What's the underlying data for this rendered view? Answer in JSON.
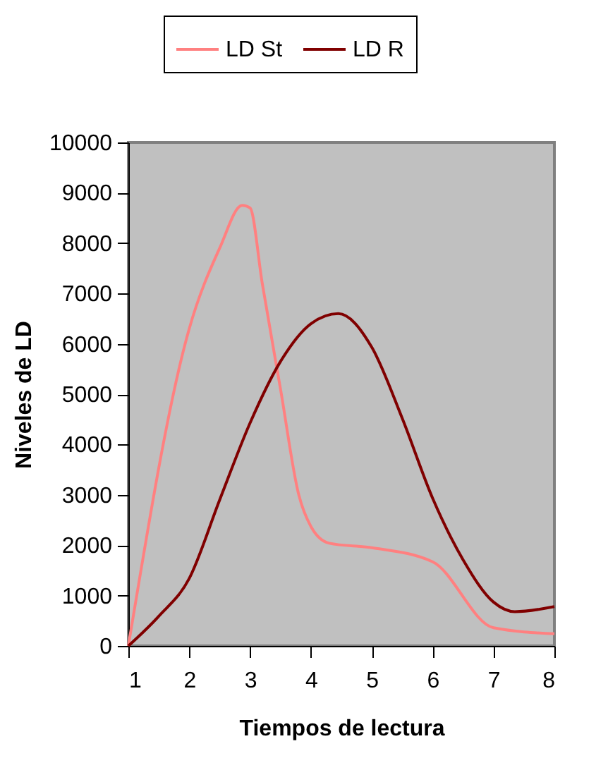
{
  "chart_data": {
    "type": "line",
    "xlabel": "Tiempos de lectura",
    "ylabel": "Niveles de LD",
    "xlim": [
      1,
      8
    ],
    "xticks": [
      1,
      2,
      3,
      4,
      5,
      6,
      7,
      8
    ],
    "ylim": [
      0,
      10000
    ],
    "yticks": [
      0,
      1000,
      2000,
      3000,
      4000,
      5000,
      6000,
      7000,
      8000,
      9000,
      10000
    ],
    "grid": false,
    "legend": "top",
    "line_style": "solid",
    "marker": "none",
    "series": [
      {
        "name": "LD St",
        "color": "#ff8080",
        "x": [
          1,
          2,
          2.5,
          2.87,
          3,
          3.2,
          3.5,
          3.8,
          4,
          4.3,
          5,
          6,
          7,
          8
        ],
        "values": [
          0,
          6300,
          7900,
          8750,
          8700,
          7200,
          5100,
          3000,
          2370,
          2040,
          1950,
          1670,
          360,
          240
        ]
      },
      {
        "name": "LD R",
        "color": "#800000",
        "x": [
          1,
          1.5,
          2,
          2.5,
          3,
          3.5,
          4,
          4.45,
          5,
          5.5,
          6,
          6.5,
          7,
          7.35,
          8
        ],
        "values": [
          0,
          590,
          1340,
          2900,
          4430,
          5650,
          6400,
          6600,
          5930,
          4520,
          2930,
          1710,
          870,
          680,
          780
        ]
      }
    ]
  }
}
